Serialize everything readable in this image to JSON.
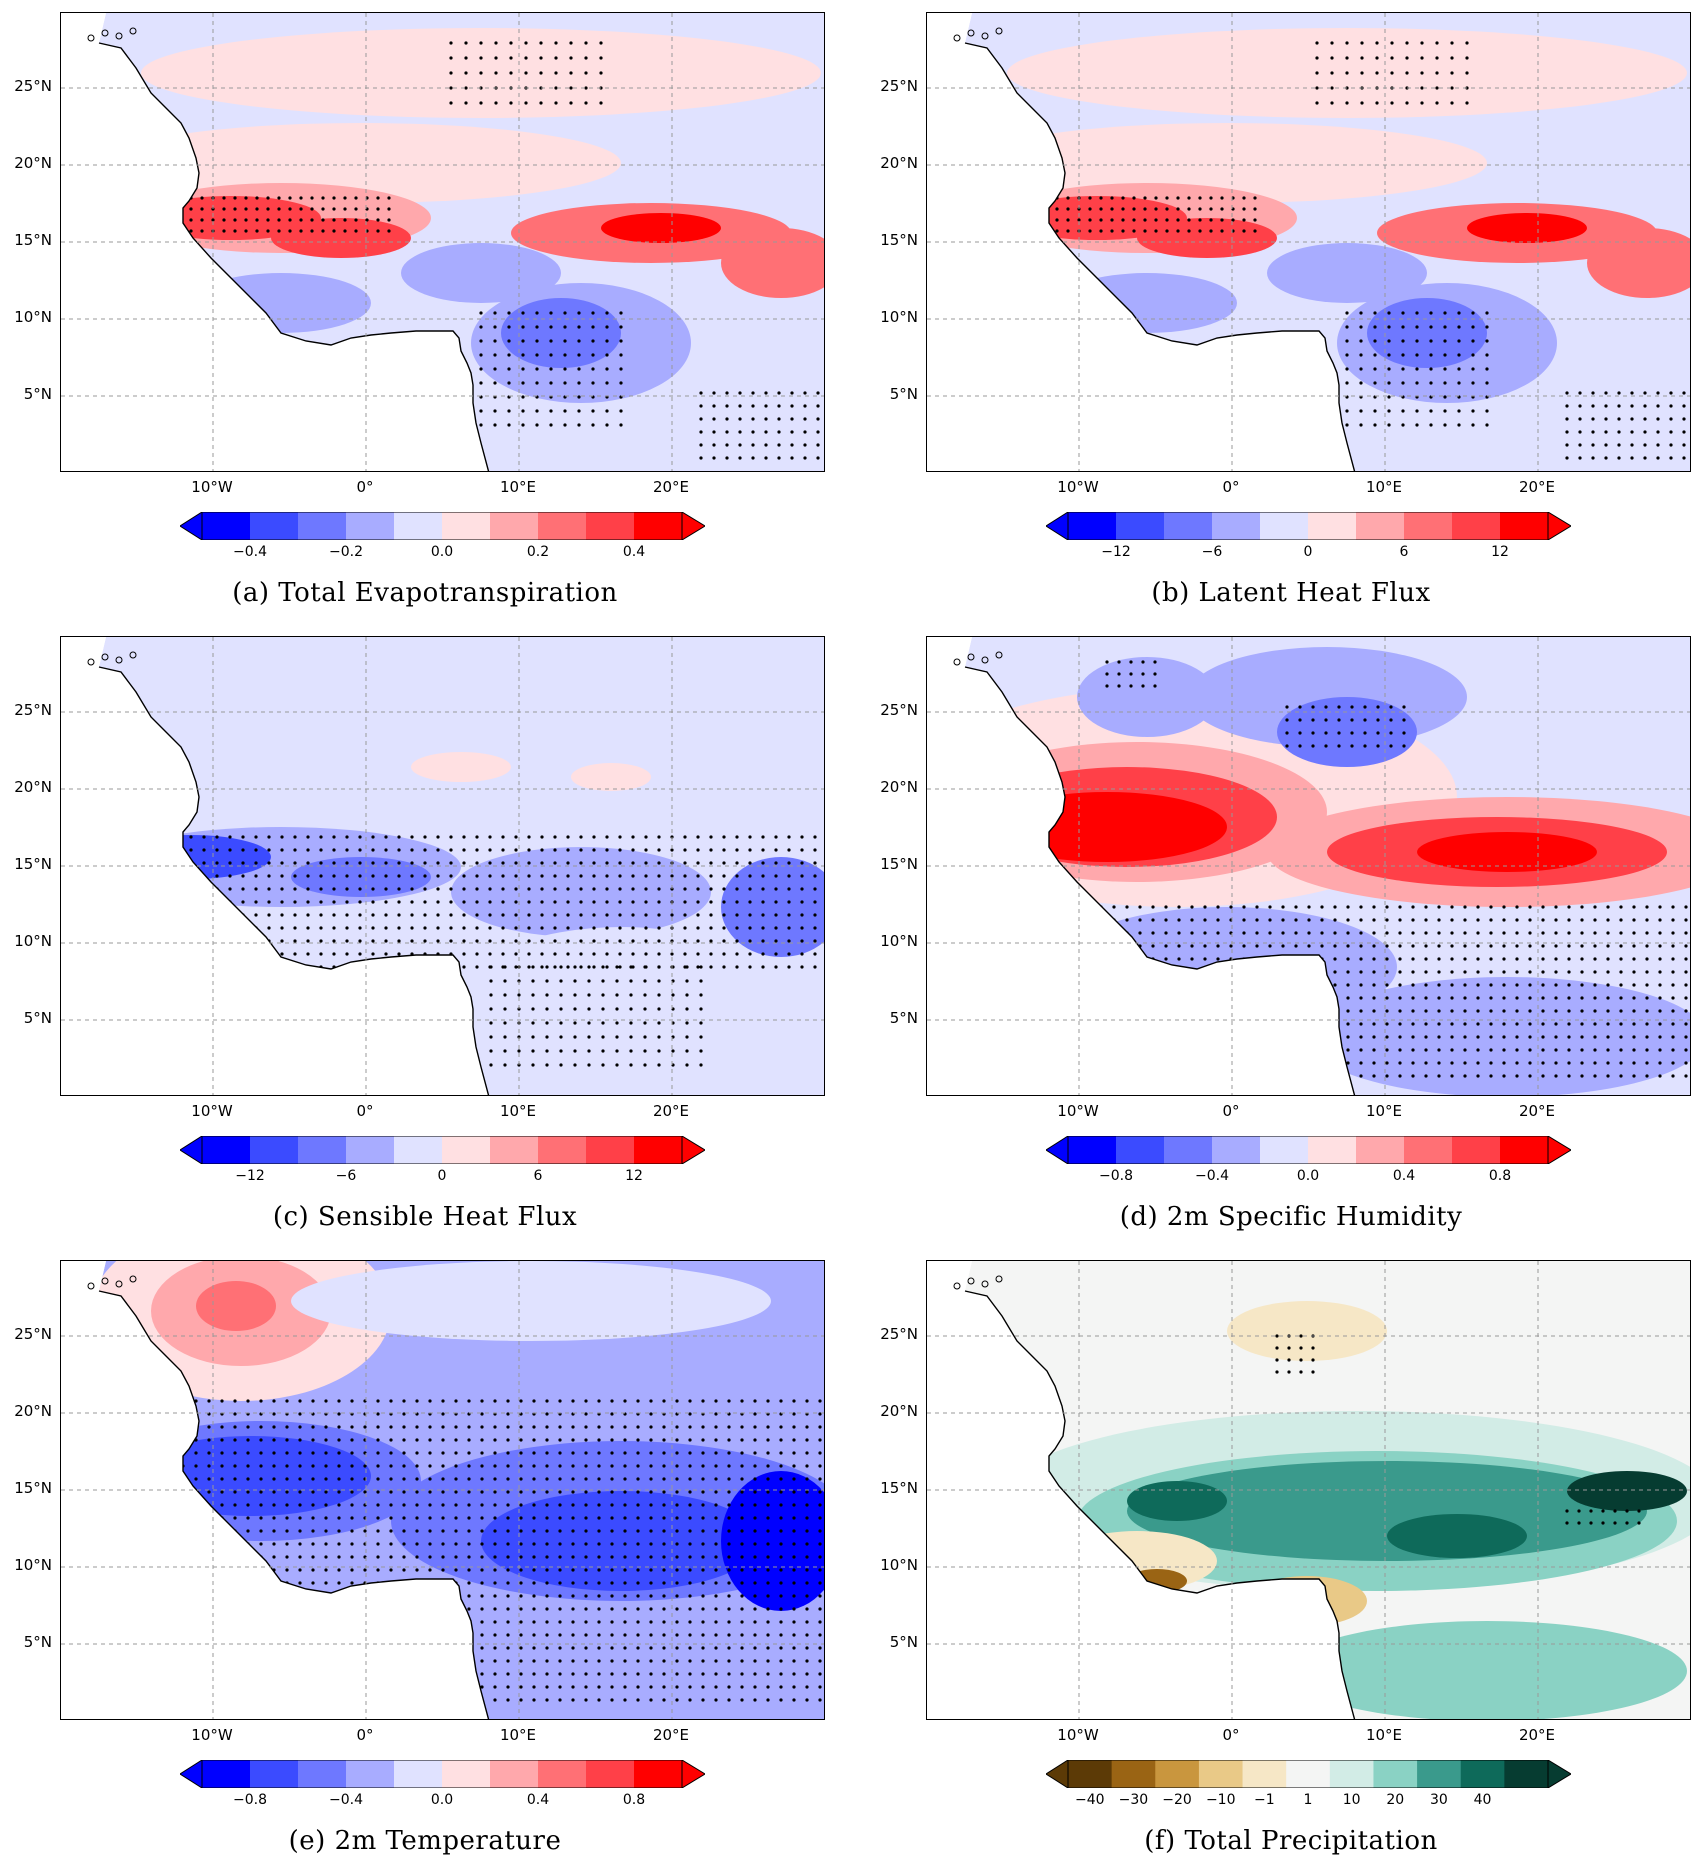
{
  "lat_labels": [
    "25°N",
    "20°N",
    "15°N",
    "10°N",
    "5°N"
  ],
  "lon_labels": [
    "10°W",
    "0°",
    "10°E",
    "20°E"
  ],
  "colors": {
    "diverging": [
      "#0000ff",
      "#3b4bff",
      "#6e78ff",
      "#a8acff",
      "#e0e2ff",
      "#ffe0e2",
      "#ffa8ac",
      "#ff7075",
      "#ff4048",
      "#ff0000"
    ],
    "precip": [
      "#5c3a06",
      "#9a6414",
      "#c9963e",
      "#e9c987",
      "#f6e7c6",
      "#f4f5f4",
      "#d2ece6",
      "#8ad2c4",
      "#3a9a8c",
      "#0e6a5a",
      "#063c31"
    ]
  },
  "panels": [
    {
      "id": "a",
      "caption": "(a)  Total  Evapotranspiration",
      "palette": "diverging",
      "ticks": [
        "−0.4",
        "−0.2",
        "0.0",
        "0.2",
        "0.4"
      ]
    },
    {
      "id": "b",
      "caption": "(b)  Latent  Heat  Flux",
      "palette": "diverging",
      "ticks": [
        "−12",
        "−6",
        "0",
        "6",
        "12"
      ]
    },
    {
      "id": "c",
      "caption": "(c)  Sensible  Heat  Flux",
      "palette": "diverging",
      "ticks": [
        "−12",
        "−6",
        "0",
        "6",
        "12"
      ]
    },
    {
      "id": "d",
      "caption": "(d)  2m  Specific  Humidity",
      "palette": "diverging",
      "ticks": [
        "−0.8",
        "−0.4",
        "0.0",
        "0.4",
        "0.8"
      ]
    },
    {
      "id": "e",
      "caption": "(e)  2m  Temperature",
      "palette": "diverging",
      "ticks": [
        "−0.8",
        "−0.4",
        "0.0",
        "0.4",
        "0.8"
      ]
    },
    {
      "id": "f",
      "caption": "(f)  Total  Precipitation",
      "palette": "precip",
      "ticks": [
        "−40",
        "−30",
        "−20",
        "−10",
        "−1",
        "1",
        "10",
        "20",
        "30",
        "40"
      ]
    }
  ]
}
